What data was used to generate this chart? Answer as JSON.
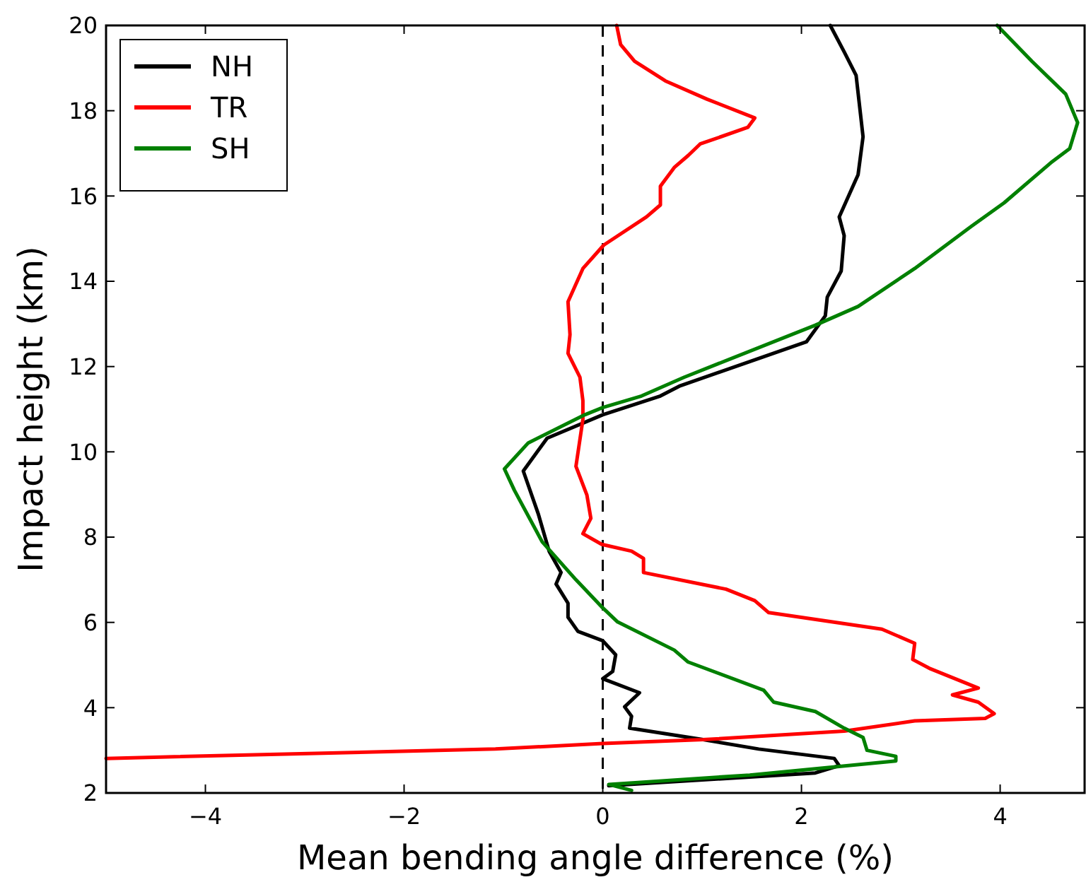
{
  "chart_data": {
    "type": "line",
    "xlabel": "Mean bending angle difference (%)",
    "ylabel": "Impact height (km)",
    "xlim": [
      -5,
      4.85
    ],
    "ylim": [
      2,
      20
    ],
    "xticks": [
      {
        "value": -4,
        "label": "−4"
      },
      {
        "value": -2,
        "label": "−2"
      },
      0,
      2,
      4
    ],
    "yticks": [
      2,
      4,
      6,
      8,
      10,
      12,
      14,
      16,
      18,
      20
    ],
    "grid": false,
    "legend": "top left",
    "line_style": "solid",
    "ref_lines": [
      {
        "axis": "x",
        "value": 0,
        "color": "#000000",
        "line_style": "dashed"
      }
    ],
    "series": [
      {
        "name": "NH",
        "color": "#000000",
        "x": [
          2.29,
          2.43,
          2.55,
          2.62,
          2.57,
          2.38,
          2.43,
          2.4,
          2.26,
          2.24,
          2.05,
          0.77,
          0.58,
          0,
          -0.56,
          -0.8,
          -0.65,
          -0.54,
          -0.42,
          -0.47,
          -0.35,
          -0.35,
          -0.25,
          0,
          0.13,
          0.1,
          0,
          0.37,
          0.22,
          0.29,
          0.27,
          1.01,
          1.57,
          2.33,
          2.38,
          2.14,
          0.06
        ],
        "values": [
          20,
          19.38,
          18.83,
          17.39,
          16.5,
          15.51,
          15.07,
          14.24,
          13.63,
          13.19,
          12.58,
          11.54,
          11.31,
          10.87,
          10.32,
          9.55,
          8.55,
          7.67,
          7.17,
          6.9,
          6.45,
          6.12,
          5.79,
          5.57,
          5.24,
          4.85,
          4.68,
          4.35,
          4.02,
          3.8,
          3.52,
          3.25,
          3.03,
          2.81,
          2.64,
          2.47,
          2.17
        ]
      },
      {
        "name": "TR",
        "color": "#ff0000",
        "x": [
          0.14,
          0.18,
          0.32,
          0.63,
          1.05,
          1.53,
          1.46,
          0.98,
          0.86,
          0.72,
          0.58,
          0.58,
          0.44,
          0.01,
          -0.2,
          -0.35,
          -0.33,
          -0.35,
          -0.23,
          -0.2,
          -0.2,
          -0.27,
          -0.16,
          -0.12,
          -0.2,
          -0.01,
          0.29,
          0.41,
          0.41,
          1.24,
          1.53,
          1.67,
          2.81,
          3.14,
          3.12,
          3.3,
          3.78,
          3.52,
          3.78,
          3.94,
          3.85,
          3.14,
          2.43,
          1.01,
          0,
          -1.08,
          -5
        ],
        "values": [
          20,
          19.55,
          19.16,
          18.7,
          18.27,
          17.83,
          17.61,
          17.22,
          16.95,
          16.67,
          16.23,
          15.79,
          15.51,
          14.85,
          14.3,
          13.52,
          12.75,
          12.31,
          11.75,
          11.2,
          10.76,
          9.66,
          8.99,
          8.44,
          8.08,
          7.83,
          7.67,
          7.5,
          7.17,
          6.78,
          6.51,
          6.23,
          5.84,
          5.51,
          5.13,
          4.91,
          4.46,
          4.3,
          4.13,
          3.86,
          3.75,
          3.69,
          3.45,
          3.25,
          3.16,
          3.03,
          2.81
        ]
      },
      {
        "name": "SH",
        "color": "#008000",
        "x": [
          3.97,
          4.32,
          4.66,
          4.78,
          4.7,
          4.51,
          4.04,
          3.71,
          3.14,
          2.57,
          2.14,
          0.82,
          0.39,
          0,
          -0.18,
          -0.75,
          -0.99,
          -0.89,
          -0.61,
          -0.27,
          0,
          0.15,
          0.72,
          0.86,
          1.62,
          1.72,
          2.14,
          2.43,
          2.62,
          2.66,
          2.95,
          2.95,
          1.48,
          0.06,
          0.29
        ],
        "values": [
          20,
          19.16,
          18.39,
          17.72,
          17.11,
          16.78,
          15.84,
          15.29,
          14.3,
          13.41,
          12.97,
          11.75,
          11.31,
          11.04,
          10.87,
          10.21,
          9.6,
          9.1,
          7.89,
          7,
          6.34,
          6.01,
          5.35,
          5.07,
          4.41,
          4.13,
          3.91,
          3.52,
          3.3,
          3,
          2.86,
          2.75,
          2.42,
          2.2,
          2.06
        ]
      }
    ]
  }
}
